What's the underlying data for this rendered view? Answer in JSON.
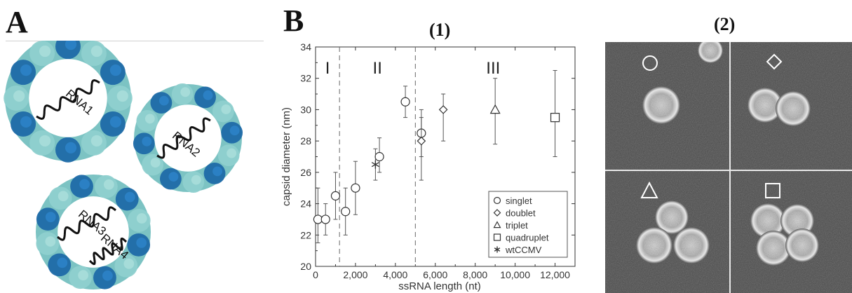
{
  "panel_a": {
    "letter": "A",
    "capsids": [
      {
        "labels": [
          "RNA1"
        ]
      },
      {
        "labels": [
          "RNA2"
        ]
      },
      {
        "labels": [
          "RNA3",
          "RNA4"
        ]
      }
    ]
  },
  "panel_b": {
    "letter": "B",
    "sub1_title": "(1)",
    "sub2_title": "(2)",
    "em_quadrants": [
      {
        "symbol": "circle"
      },
      {
        "symbol": "diamond"
      },
      {
        "symbol": "triangle"
      },
      {
        "symbol": "square"
      }
    ]
  },
  "chart_data": {
    "type": "scatter",
    "title": "",
    "xlabel": "ssRNA length (nt)",
    "ylabel": "capsid diameter (nm)",
    "xlim": [
      0,
      13000
    ],
    "ylim": [
      20,
      34
    ],
    "x_ticks": [
      0,
      2000,
      4000,
      6000,
      8000,
      10000,
      12000
    ],
    "x_tick_labels": [
      "0",
      "2,000",
      "4,000",
      "6,000",
      "8,000",
      "10,000",
      "12,000"
    ],
    "y_ticks": [
      20,
      22,
      24,
      26,
      28,
      30,
      32,
      34
    ],
    "y_tick_labels": [
      "20",
      "22",
      "24",
      "26",
      "28",
      "30",
      "32",
      "34"
    ],
    "region_boundaries": [
      1200,
      5000
    ],
    "regions": [
      {
        "label": "I",
        "x": 600
      },
      {
        "label": "II",
        "x": 3100
      },
      {
        "label": "III",
        "x": 8900
      }
    ],
    "legend_position": "bottom-right",
    "series": [
      {
        "name": "singlet",
        "marker": "circle",
        "points": [
          {
            "x": 120,
            "y": 23.0,
            "lo": 21.5,
            "hi": 25.0
          },
          {
            "x": 500,
            "y": 23.0,
            "lo": 22.0,
            "hi": 24.0
          },
          {
            "x": 1000,
            "y": 24.5,
            "lo": 23.0,
            "hi": 26.0
          },
          {
            "x": 1500,
            "y": 23.5,
            "lo": 22.0,
            "hi": 25.0
          },
          {
            "x": 2000,
            "y": 25.0,
            "lo": 23.3,
            "hi": 26.7
          },
          {
            "x": 3200,
            "y": 27.0,
            "lo": 26.0,
            "hi": 28.2
          },
          {
            "x": 4500,
            "y": 30.5,
            "lo": 29.5,
            "hi": 31.5
          },
          {
            "x": 5300,
            "y": 28.5,
            "lo": 27.0,
            "hi": 30.0
          }
        ]
      },
      {
        "name": "doublet",
        "marker": "diamond",
        "points": [
          {
            "x": 5300,
            "y": 28.0,
            "lo": 25.5,
            "hi": 29.5
          },
          {
            "x": 6400,
            "y": 30.0,
            "lo": 28.0,
            "hi": 31.0
          }
        ]
      },
      {
        "name": "triplet",
        "marker": "triangle",
        "points": [
          {
            "x": 9000,
            "y": 30.0,
            "lo": 27.8,
            "hi": 32.0
          }
        ]
      },
      {
        "name": "quadruplet",
        "marker": "square",
        "points": [
          {
            "x": 12000,
            "y": 29.5,
            "lo": 27.0,
            "hi": 32.5
          }
        ]
      },
      {
        "name": "wtCCMV",
        "marker": "asterisk",
        "points": [
          {
            "x": 3000,
            "y": 26.5,
            "lo": 25.5,
            "hi": 27.5
          }
        ]
      }
    ]
  }
}
